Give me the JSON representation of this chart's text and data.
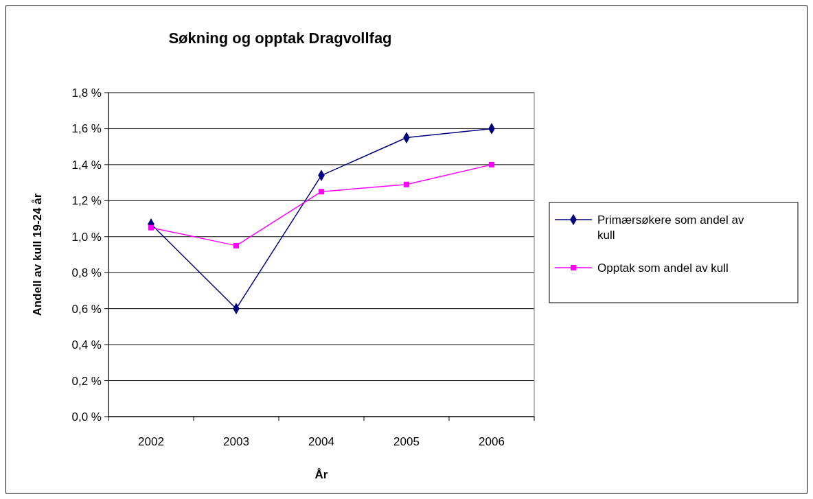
{
  "chart_data": {
    "type": "line",
    "title": "Søkning og opptak Dragvollfag",
    "xlabel": "År",
    "ylabel": "Andell av kull 19-24 år",
    "categories": [
      "2002",
      "2003",
      "2004",
      "2005",
      "2006"
    ],
    "series": [
      {
        "name": "Primærsøkere som andel av kull",
        "color": "#000080",
        "marker": "diamond",
        "values": [
          1.07,
          0.6,
          1.34,
          1.55,
          1.6
        ]
      },
      {
        "name": "Opptak som andel av kull",
        "color": "#ff00ff",
        "marker": "square",
        "values": [
          1.05,
          0.95,
          1.25,
          1.29,
          1.4
        ]
      }
    ],
    "ylim": [
      0,
      1.8
    ],
    "yticks": [
      {
        "value": 0,
        "label": "0,0 %"
      },
      {
        "value": 0.2,
        "label": "0,2 %"
      },
      {
        "value": 0.4,
        "label": "0,4 %"
      },
      {
        "value": 0.6,
        "label": "0,6 %"
      },
      {
        "value": 0.8,
        "label": "0,8 %"
      },
      {
        "value": 1.0,
        "label": "1,0 %"
      },
      {
        "value": 1.2,
        "label": "1,2 %"
      },
      {
        "value": 1.4,
        "label": "1,4 %"
      },
      {
        "value": 1.6,
        "label": "1,6 %"
      },
      {
        "value": 1.8,
        "label": "1,8 %"
      }
    ],
    "grid": "y",
    "legend": "right",
    "line_style": "solid"
  }
}
